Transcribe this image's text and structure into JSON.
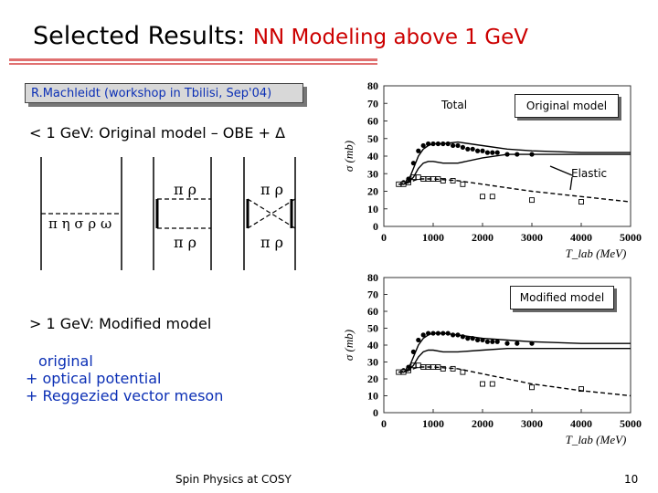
{
  "slide": {
    "title_lead": "Selected Results:",
    "title_rest": "NN Modeling above 1 GeV",
    "author": "R.Machleidt (workshop in Tbilisi, Sep'04)",
    "low_energy_heading": "< 1 GeV: Original model – OBE + Δ",
    "high_energy_heading": "> 1 GeV: Modified model",
    "model_items": [
      "original",
      "+ optical potential",
      "+ Reggezied vector meson"
    ],
    "footer": "Spin Physics at COSY",
    "page_number": "10"
  },
  "diagram": {
    "exchange_label": "π η σ ρ ω",
    "box1_top": "π ρ",
    "box1_bottom": "π ρ",
    "box2_top": "π ρ",
    "box2_bottom": "π ρ"
  },
  "chart_data": [
    {
      "type": "scatter",
      "panel": "Original model",
      "ylabel": "σ (mb)",
      "xlabel": "T_lab (MeV)",
      "xlim": [
        0,
        5000
      ],
      "ylim": [
        0,
        80
      ],
      "xticks": [
        "0",
        "1000",
        "2000",
        "3000",
        "4000",
        "5000"
      ],
      "yticks": [
        "0",
        "10",
        "20",
        "30",
        "40",
        "50",
        "60",
        "70",
        "80"
      ],
      "annotations": [
        "Total",
        "Original model",
        "Elastic"
      ],
      "series": [
        {
          "marker": "filled-circle",
          "x": [
            300,
            400,
            500,
            600,
            700,
            800,
            900,
            1000,
            1100,
            1200,
            1300,
            1400,
            1500,
            1600,
            1700,
            1800,
            1900,
            2000,
            2100,
            2200,
            2300,
            2500,
            2700,
            3000
          ],
          "y": [
            24,
            25,
            27,
            36,
            43,
            46,
            47,
            47,
            47,
            47,
            47,
            46,
            46,
            45,
            44,
            44,
            43,
            43,
            42,
            42,
            42,
            41,
            41,
            41
          ]
        },
        {
          "marker": "open-square",
          "x": [
            300,
            400,
            500,
            600,
            700,
            800,
            900,
            1000,
            1100,
            1200,
            1400,
            1600,
            2000,
            2200,
            3000,
            4000
          ],
          "y": [
            24,
            24,
            25,
            28,
            28,
            27,
            27,
            27,
            27,
            26,
            26,
            24,
            17,
            17,
            15,
            14
          ]
        },
        {
          "line": "solid",
          "x": [
            300,
            400,
            500,
            600,
            700,
            800,
            900,
            1000,
            1200,
            1500,
            2000,
            2500,
            3000,
            4000,
            5000
          ],
          "y": [
            24,
            24,
            26,
            33,
            40,
            44,
            46,
            47,
            47,
            48,
            46,
            44,
            43,
            42,
            42
          ]
        },
        {
          "line": "solid",
          "x": [
            300,
            400,
            500,
            600,
            700,
            800,
            900,
            1000,
            1200,
            1500,
            2000,
            2500,
            3000,
            4000,
            5000
          ],
          "y": [
            24,
            24,
            25,
            28,
            33,
            36,
            37,
            37,
            36,
            36,
            39,
            41,
            41,
            41,
            41
          ]
        },
        {
          "line": "dashed",
          "x": [
            300,
            500,
            700,
            1000,
            1500,
            2000,
            2500,
            3000,
            4000,
            5000
          ],
          "y": [
            24,
            25,
            27,
            27,
            26,
            24,
            22,
            20,
            17,
            14
          ]
        }
      ]
    },
    {
      "type": "scatter",
      "panel": "Modified model",
      "ylabel": "σ (mb)",
      "xlabel": "T_lab (MeV)",
      "xlim": [
        0,
        5000
      ],
      "ylim": [
        0,
        80
      ],
      "xticks": [
        "0",
        "1000",
        "2000",
        "3000",
        "4000",
        "5000"
      ],
      "yticks": [
        "0",
        "10",
        "20",
        "30",
        "40",
        "50",
        "60",
        "70",
        "80"
      ],
      "annotations": [
        "Modified model"
      ],
      "series": [
        {
          "marker": "filled-circle",
          "x": [
            300,
            400,
            500,
            600,
            700,
            800,
            900,
            1000,
            1100,
            1200,
            1300,
            1400,
            1500,
            1600,
            1700,
            1800,
            1900,
            2000,
            2100,
            2200,
            2300,
            2500,
            2700,
            3000
          ],
          "y": [
            24,
            25,
            27,
            36,
            43,
            46,
            47,
            47,
            47,
            47,
            47,
            46,
            46,
            45,
            44,
            44,
            43,
            43,
            42,
            42,
            42,
            41,
            41,
            41
          ]
        },
        {
          "marker": "open-square",
          "x": [
            300,
            400,
            500,
            600,
            700,
            800,
            900,
            1000,
            1100,
            1200,
            1400,
            1600,
            2000,
            2200,
            3000,
            4000
          ],
          "y": [
            24,
            24,
            25,
            28,
            28,
            27,
            27,
            27,
            27,
            26,
            26,
            24,
            17,
            17,
            15,
            14
          ]
        },
        {
          "line": "solid",
          "x": [
            300,
            400,
            500,
            600,
            700,
            800,
            900,
            1000,
            1200,
            1500,
            2000,
            2500,
            3000,
            4000,
            5000
          ],
          "y": [
            24,
            24,
            26,
            33,
            40,
            44,
            46,
            47,
            47,
            46,
            44,
            43,
            42,
            41,
            41
          ]
        },
        {
          "line": "solid",
          "x": [
            300,
            400,
            500,
            600,
            700,
            800,
            900,
            1000,
            1200,
            1500,
            2000,
            2500,
            3000,
            4000,
            5000
          ],
          "y": [
            24,
            24,
            25,
            28,
            33,
            36,
            37,
            37,
            36,
            36,
            37,
            38,
            38,
            38,
            38
          ]
        },
        {
          "line": "dashed",
          "x": [
            300,
            500,
            700,
            1000,
            1500,
            2000,
            2500,
            3000,
            4000,
            5000
          ],
          "y": [
            24,
            25,
            27,
            27,
            26,
            23,
            20,
            17,
            13,
            10
          ]
        }
      ]
    }
  ]
}
